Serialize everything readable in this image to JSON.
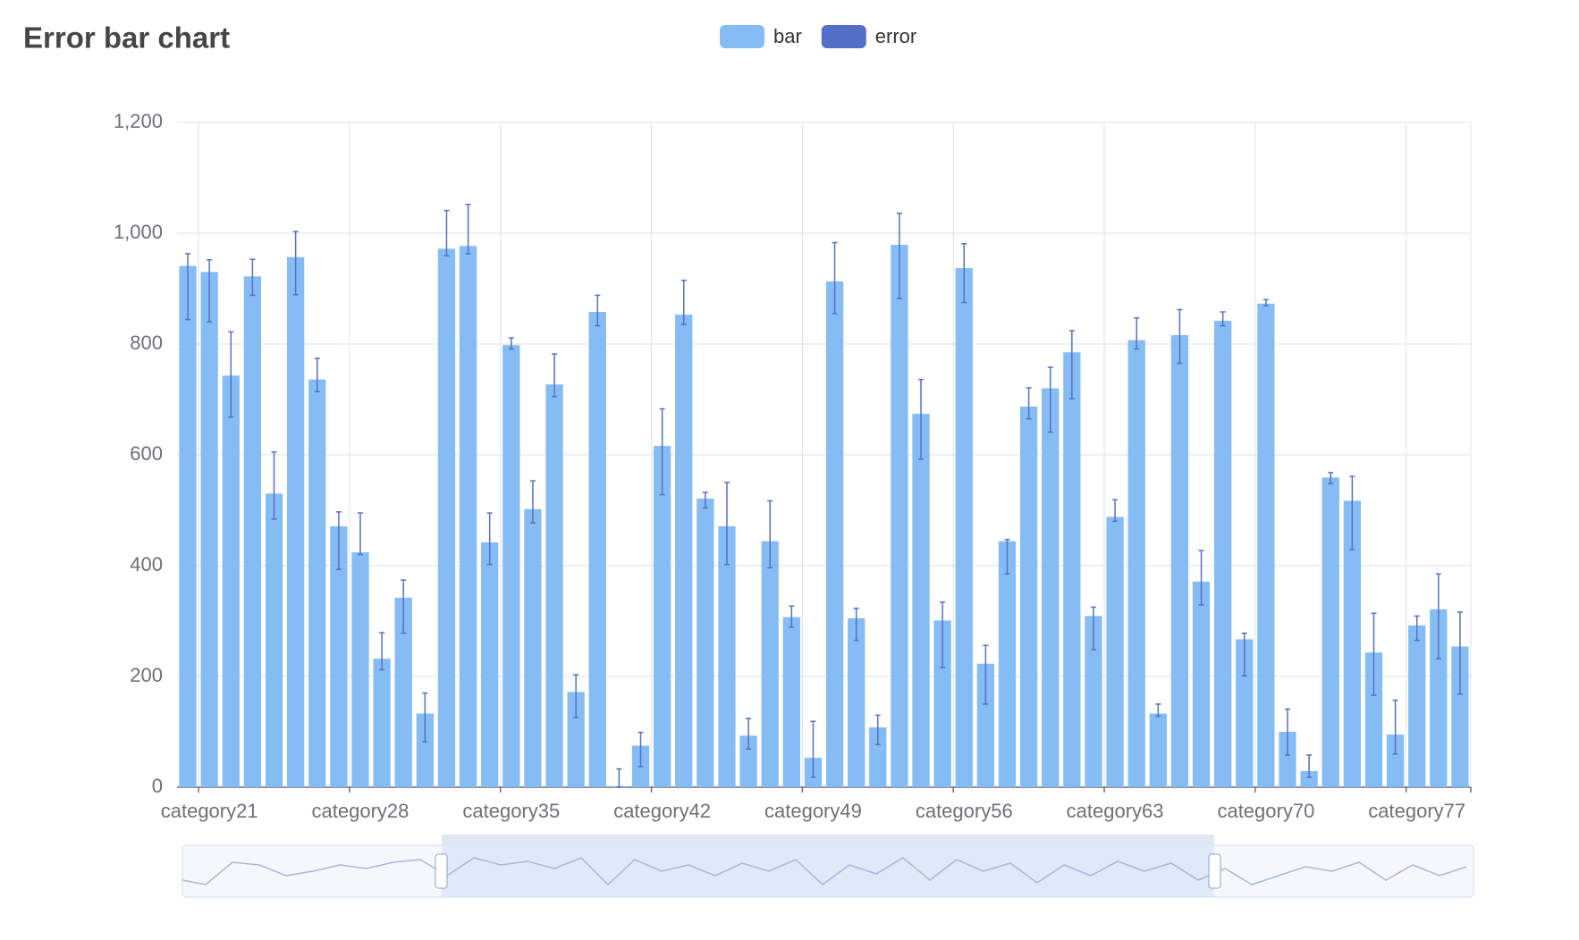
{
  "chart_data": {
    "type": "bar",
    "title": "Error bar chart",
    "categories": [
      null,
      "category21",
      null,
      null,
      null,
      null,
      null,
      null,
      "category28",
      null,
      null,
      null,
      null,
      null,
      null,
      "category35",
      null,
      null,
      null,
      null,
      null,
      null,
      "category42",
      null,
      null,
      null,
      null,
      null,
      null,
      "category49",
      null,
      null,
      null,
      null,
      null,
      null,
      "category56",
      null,
      null,
      null,
      null,
      null,
      null,
      "category63",
      null,
      null,
      null,
      null,
      null,
      null,
      "category70",
      null,
      null,
      null,
      null,
      null,
      null,
      "category77",
      null,
      null
    ],
    "series": [
      {
        "name": "bar",
        "color": "#86bcf4",
        "values": [
          941,
          930,
          743,
          922,
          530,
          957,
          736,
          471,
          424,
          232,
          342,
          133,
          972,
          977,
          442,
          798,
          502,
          727,
          172,
          858,
          2,
          75,
          616,
          853,
          521,
          471,
          93,
          444,
          307,
          53,
          913,
          305,
          108,
          979,
          674,
          301,
          937,
          223,
          444,
          687,
          720,
          785,
          309,
          488,
          807,
          133,
          816,
          371,
          842,
          267,
          873,
          100,
          29,
          559,
          517,
          243,
          95,
          292,
          321,
          254
        ]
      },
      {
        "name": "error",
        "color": "#5470c6",
        "low": [
          844,
          840,
          668,
          888,
          484,
          889,
          714,
          393,
          420,
          212,
          278,
          82,
          959,
          963,
          402,
          791,
          477,
          705,
          126,
          833,
          0,
          37,
          528,
          835,
          504,
          402,
          69,
          396,
          289,
          18,
          855,
          265,
          77,
          882,
          592,
          216,
          875,
          150,
          385,
          665,
          641,
          701,
          248,
          480,
          791,
          128,
          765,
          329,
          833,
          201,
          869,
          58,
          18,
          548,
          429,
          166,
          60,
          265,
          232,
          168
        ],
        "high": [
          963,
          952,
          822,
          953,
          605,
          1003,
          774,
          497,
          495,
          279,
          374,
          170,
          1041,
          1052,
          495,
          811,
          553,
          782,
          203,
          888,
          33,
          99,
          683,
          915,
          532,
          550,
          124,
          517,
          327,
          119,
          983,
          323,
          130,
          1036,
          736,
          334,
          981,
          256,
          447,
          721,
          758,
          824,
          325,
          519,
          847,
          150,
          862,
          427,
          858,
          278,
          880,
          141,
          58,
          568,
          561,
          314,
          157,
          309,
          385,
          316
        ]
      }
    ],
    "ylim": [
      0,
      1200
    ],
    "yticks": [
      0,
      200,
      400,
      600,
      800,
      {
        "value": 1000,
        "label": "1,000"
      },
      {
        "value": 1200,
        "label": "1,200"
      }
    ],
    "grid": true,
    "legend": "top"
  }
}
